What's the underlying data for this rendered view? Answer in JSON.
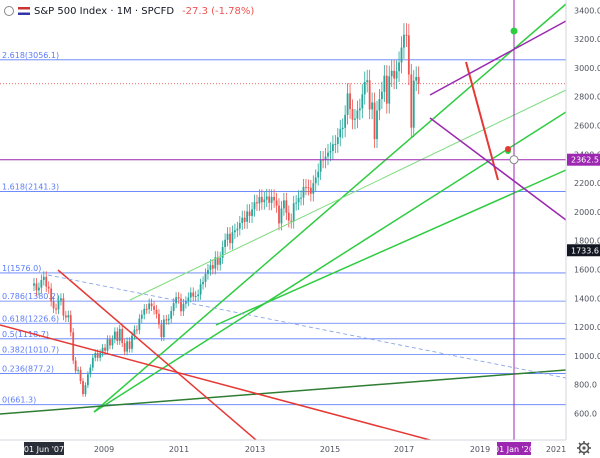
{
  "header": {
    "symbol": "S&P 500 Index",
    "interval": "1M",
    "source": "SPCFD",
    "change": "-27.3 (-1.78%)"
  },
  "colors": {
    "up": "#26a69a",
    "down": "#ef5350",
    "fib_line": "#5c7cfa",
    "channel_green": "#2ecc40",
    "trend_red": "#e53935",
    "purple": "#9c27b0",
    "dark_green": "#2e7d32",
    "light_green": "#7ddc7d"
  },
  "chart_data": {
    "type": "candlestick",
    "x_start": "2007-06",
    "x_ticks": [
      "01 Jun '07",
      "2009",
      "2011",
      "2013",
      "2015",
      "2017",
      "2019",
      "01 Jan '20",
      "2021"
    ],
    "y_ticks": [
      600,
      800,
      1000,
      1200,
      1400,
      1600,
      1800,
      2000,
      2200,
      2400,
      2600,
      2800,
      3000,
      3200,
      3400
    ],
    "ylim": [
      545,
      3450
    ],
    "price_labels": [
      {
        "label": "2362.5",
        "value": 2362.5,
        "color": "#9c27b0"
      },
      {
        "label": "1733.6",
        "value": 1733.6,
        "color": "#131722"
      }
    ],
    "fib_levels": [
      {
        "label": "2.618(3056.1)",
        "value": 3056.1
      },
      {
        "label": "1.618(2141.3)",
        "value": 2141.3
      },
      {
        "label": "1(1576.0)",
        "value": 1576.0
      },
      {
        "label": "0.786(1380.2)",
        "value": 1380.2
      },
      {
        "label": "0.618(1226.6)",
        "value": 1226.6
      },
      {
        "label": "0.5(1118.7)",
        "value": 1118.7
      },
      {
        "label": "0.382(1010.7)",
        "value": 1010.7
      },
      {
        "label": "0.236(877.2)",
        "value": 877.2
      },
      {
        "label": "0(661.3)",
        "value": 661.3
      }
    ],
    "closes": [
      1503,
      1455,
      1474,
      1527,
      1549,
      1481,
      1468,
      1378,
      1330,
      1322,
      1385,
      1400,
      1280,
      1267,
      1283,
      1164,
      968,
      896,
      903,
      825,
      735,
      797,
      872,
      919,
      987,
      1020,
      987,
      1020,
      1057,
      1036,
      1115,
      1073,
      1115,
      1169,
      1104,
      1187,
      1089,
      1030,
      1101,
      1049,
      1141,
      1183,
      1180,
      1258,
      1286,
      1327,
      1325,
      1364,
      1345,
      1320,
      1292,
      1219,
      1131,
      1253,
      1247,
      1258,
      1312,
      1366,
      1408,
      1398,
      1310,
      1362,
      1379,
      1406,
      1440,
      1412,
      1416,
      1426,
      1498,
      1514,
      1569,
      1597,
      1630,
      1606,
      1685,
      1633,
      1681,
      1756,
      1806,
      1848,
      1783,
      1859,
      1872,
      1884,
      1923,
      1960,
      1931,
      2003,
      1972,
      2018,
      2067,
      2059,
      2104,
      2067,
      2086,
      2107,
      2063,
      2104,
      2080,
      2044,
      1920,
      2024,
      2080,
      1994,
      1940,
      1932,
      2060,
      2065,
      2097,
      2099,
      2174,
      2171,
      2168,
      2126,
      2199,
      2239,
      2279,
      2364,
      2362,
      2384,
      2412,
      2423,
      2470,
      2472,
      2519,
      2575,
      2584,
      2674,
      2823,
      2714,
      2640,
      2648,
      2705,
      2718,
      2816,
      2902,
      2914,
      2712,
      2760,
      2506,
      2704,
      2784,
      2834,
      2946,
      2752,
      2942,
      2980,
      2926,
      2977,
      3038,
      3141,
      3230,
      3226,
      2954,
      2585,
      2912,
      2937,
      2890
    ]
  }
}
